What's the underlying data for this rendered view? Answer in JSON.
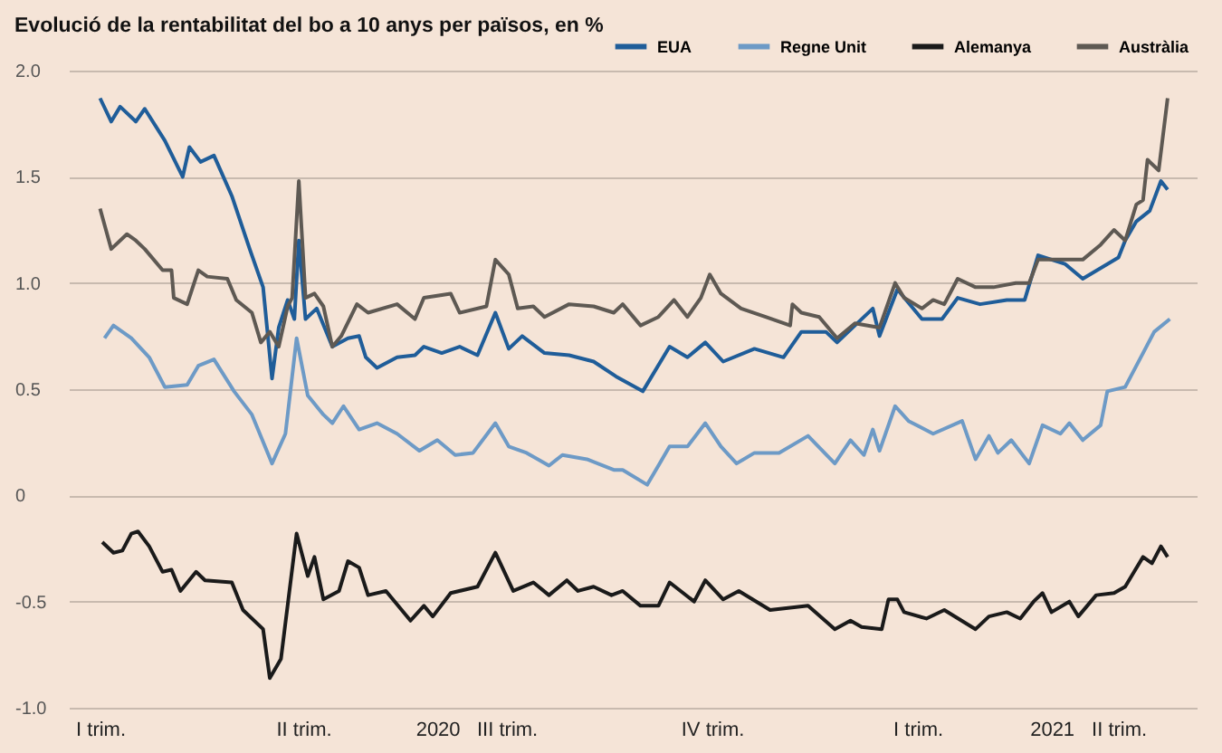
{
  "chart_data": {
    "type": "line",
    "title": "Evolució de la rentabilitat del bo a 10 anys per països, en %",
    "xlim": [
      "2019-12-18",
      "2021-05-06"
    ],
    "xticks": [
      {
        "value": "2020-01-01",
        "label": "I trim."
      },
      {
        "value": "2020-04-01",
        "label": "II trim."
      },
      {
        "value": "2020-07-01",
        "label": "III trim."
      },
      {
        "value": "2020-10-01",
        "label": "IV trim."
      },
      {
        "value": "2021-01-01",
        "label": "I trim."
      },
      {
        "value": "2021-04-01",
        "label": "II trim."
      },
      {
        "value": "2020-05-31",
        "label": "2020"
      },
      {
        "value": "2021-03-02",
        "label": "2021"
      }
    ],
    "ylim": [
      -1.0,
      2.0
    ],
    "yticks": [
      {
        "value": 2,
        "label": "2.0"
      },
      1.5,
      {
        "value": 1,
        "label": "1.0"
      },
      0.5,
      0,
      -0.5,
      {
        "value": -1,
        "label": "-1.0"
      }
    ],
    "grid": "y",
    "legend": "top right",
    "series": [
      {
        "name": "EUA",
        "color": "#1f5d99",
        "x": [
          "2020-01-01",
          "2020-01-06",
          "2020-01-10",
          "2020-01-17",
          "2020-01-21",
          "2020-01-30",
          "2020-02-07",
          "2020-02-10",
          "2020-02-15",
          "2020-02-21",
          "2020-02-29",
          "2020-03-08",
          "2020-03-14",
          "2020-03-18",
          "2020-03-21",
          "2020-03-25",
          "2020-03-28",
          "2020-03-30",
          "2020-04-02",
          "2020-04-07",
          "2020-04-14",
          "2020-04-21",
          "2020-04-26",
          "2020-04-29",
          "2020-05-04",
          "2020-05-13",
          "2020-05-21",
          "2020-05-25",
          "2020-06-02",
          "2020-06-10",
          "2020-06-18",
          "2020-06-26",
          "2020-07-02",
          "2020-07-08",
          "2020-07-18",
          "2020-07-29",
          "2020-08-09",
          "2020-08-19",
          "2020-08-31",
          "2020-09-12",
          "2020-09-20",
          "2020-09-28",
          "2020-10-06",
          "2020-10-20",
          "2020-11-02",
          "2020-11-10",
          "2020-11-21",
          "2020-11-26",
          "2020-12-04",
          "2020-12-12",
          "2020-12-15",
          "2020-12-23",
          "2021-01-03",
          "2021-01-12",
          "2021-01-19",
          "2021-01-29",
          "2021-02-10",
          "2021-02-18",
          "2021-02-24",
          "2021-03-08",
          "2021-03-16",
          "2021-04-01",
          "2021-04-04",
          "2021-04-09",
          "2021-04-15",
          "2021-04-20",
          "2021-04-23"
        ],
        "values": [
          1.87,
          1.76,
          1.83,
          1.76,
          1.82,
          1.67,
          1.5,
          1.64,
          1.57,
          1.6,
          1.41,
          1.16,
          0.98,
          0.55,
          0.79,
          0.92,
          0.83,
          1.2,
          0.83,
          0.88,
          0.7,
          0.74,
          0.75,
          0.65,
          0.6,
          0.65,
          0.66,
          0.7,
          0.67,
          0.7,
          0.66,
          0.86,
          0.69,
          0.75,
          0.67,
          0.66,
          0.63,
          0.56,
          0.49,
          0.7,
          0.65,
          0.72,
          0.63,
          0.69,
          0.65,
          0.77,
          0.77,
          0.72,
          0.8,
          0.88,
          0.75,
          0.97,
          0.83,
          0.83,
          0.93,
          0.9,
          0.92,
          0.92,
          1.13,
          1.09,
          1.02,
          1.12,
          1.2,
          1.29,
          1.34,
          1.48,
          1.44
        ]
      },
      {
        "name": "Regne Unit",
        "color": "#6d9ac6",
        "x": [
          "2020-01-03",
          "2020-01-07",
          "2020-01-15",
          "2020-01-23",
          "2020-01-30",
          "2020-02-09",
          "2020-02-14",
          "2020-02-21",
          "2020-03-01",
          "2020-03-09",
          "2020-03-18",
          "2020-03-24",
          "2020-03-29",
          "2020-04-03",
          "2020-04-10",
          "2020-04-14",
          "2020-04-19",
          "2020-04-26",
          "2020-05-04",
          "2020-05-13",
          "2020-05-23",
          "2020-05-31",
          "2020-06-08",
          "2020-06-16",
          "2020-06-26",
          "2020-07-02",
          "2020-07-10",
          "2020-07-20",
          "2020-07-26",
          "2020-08-06",
          "2020-08-18",
          "2020-08-22",
          "2020-09-02",
          "2020-09-07",
          "2020-09-12",
          "2020-09-20",
          "2020-09-28",
          "2020-10-05",
          "2020-10-12",
          "2020-10-20",
          "2020-10-31",
          "2020-11-13",
          "2020-11-25",
          "2020-12-02",
          "2020-12-08",
          "2020-12-12",
          "2020-12-15",
          "2020-12-22",
          "2020-12-28",
          "2021-01-08",
          "2021-01-21",
          "2021-01-27",
          "2021-02-02",
          "2021-02-06",
          "2021-02-12",
          "2021-02-20",
          "2021-02-26",
          "2021-03-06",
          "2021-03-10",
          "2021-03-16",
          "2021-03-24",
          "2021-03-27",
          "2021-04-04",
          "2021-04-09",
          "2021-04-12",
          "2021-04-17",
          "2021-04-24"
        ],
        "values": [
          0.74,
          0.8,
          0.74,
          0.65,
          0.51,
          0.52,
          0.61,
          0.64,
          0.49,
          0.38,
          0.15,
          0.29,
          0.74,
          0.47,
          0.38,
          0.34,
          0.42,
          0.31,
          0.34,
          0.29,
          0.21,
          0.26,
          0.19,
          0.2,
          0.34,
          0.23,
          0.2,
          0.14,
          0.19,
          0.17,
          0.12,
          0.12,
          0.05,
          0.14,
          0.23,
          0.23,
          0.34,
          0.23,
          0.15,
          0.2,
          0.2,
          0.28,
          0.15,
          0.26,
          0.19,
          0.31,
          0.21,
          0.42,
          0.35,
          0.29,
          0.35,
          0.17,
          0.28,
          0.2,
          0.26,
          0.15,
          0.33,
          0.29,
          0.34,
          0.26,
          0.33,
          0.49,
          0.51,
          0.61,
          0.67,
          0.77,
          0.83
        ]
      },
      {
        "name": "Alemanya",
        "color": "#1a1a1a",
        "x": [
          "2020-01-02",
          "2020-01-07",
          "2020-01-11",
          "2020-01-15",
          "2020-01-18",
          "2020-01-23",
          "2020-01-29",
          "2020-02-02",
          "2020-02-06",
          "2020-02-13",
          "2020-02-17",
          "2020-02-29",
          "2020-03-05",
          "2020-03-14",
          "2020-03-17",
          "2020-03-22",
          "2020-03-29",
          "2020-04-03",
          "2020-04-06",
          "2020-04-10",
          "2020-04-17",
          "2020-04-21",
          "2020-04-26",
          "2020-04-30",
          "2020-05-08",
          "2020-05-19",
          "2020-05-25",
          "2020-05-29",
          "2020-06-06",
          "2020-06-18",
          "2020-06-26",
          "2020-07-04",
          "2020-07-13",
          "2020-07-20",
          "2020-07-28",
          "2020-08-02",
          "2020-08-09",
          "2020-08-17",
          "2020-08-22",
          "2020-08-30",
          "2020-09-07",
          "2020-09-12",
          "2020-09-23",
          "2020-09-28",
          "2020-10-06",
          "2020-10-13",
          "2020-10-27",
          "2020-11-13",
          "2020-11-25",
          "2020-12-02",
          "2020-12-07",
          "2020-12-16",
          "2020-12-19",
          "2020-12-23",
          "2020-12-26",
          "2021-01-05",
          "2021-01-13",
          "2021-01-27",
          "2021-02-02",
          "2021-02-10",
          "2021-02-16",
          "2021-02-22",
          "2021-02-26",
          "2021-03-02",
          "2021-03-10",
          "2021-03-14",
          "2021-03-22",
          "2021-03-30",
          "2021-04-04",
          "2021-04-08",
          "2021-04-12",
          "2021-04-16",
          "2021-04-20",
          "2021-04-23"
        ],
        "values": [
          -0.22,
          -0.27,
          -0.26,
          -0.18,
          -0.17,
          -0.24,
          -0.36,
          -0.35,
          -0.45,
          -0.36,
          -0.4,
          -0.41,
          -0.54,
          -0.63,
          -0.86,
          -0.77,
          -0.18,
          -0.38,
          -0.29,
          -0.49,
          -0.45,
          -0.31,
          -0.34,
          -0.47,
          -0.45,
          -0.59,
          -0.52,
          -0.57,
          -0.46,
          -0.43,
          -0.27,
          -0.45,
          -0.41,
          -0.47,
          -0.4,
          -0.45,
          -0.43,
          -0.47,
          -0.45,
          -0.52,
          -0.52,
          -0.41,
          -0.5,
          -0.4,
          -0.49,
          -0.45,
          -0.54,
          -0.52,
          -0.63,
          -0.59,
          -0.62,
          -0.63,
          -0.49,
          -0.49,
          -0.55,
          -0.58,
          -0.54,
          -0.63,
          -0.57,
          -0.55,
          -0.58,
          -0.5,
          -0.46,
          -0.55,
          -0.5,
          -0.57,
          -0.47,
          -0.46,
          -0.43,
          -0.36,
          -0.29,
          -0.32,
          -0.24,
          -0.29
        ]
      },
      {
        "name": "Austràlia",
        "color": "#5e5953",
        "x": [
          "2020-01-01",
          "2020-01-06",
          "2020-01-13",
          "2020-01-17",
          "2020-01-21",
          "2020-01-29",
          "2020-02-02",
          "2020-02-03",
          "2020-02-09",
          "2020-02-14",
          "2020-02-18",
          "2020-02-27",
          "2020-03-02",
          "2020-03-09",
          "2020-03-13",
          "2020-03-17",
          "2020-03-21",
          "2020-03-25",
          "2020-03-27",
          "2020-03-30",
          "2020-04-02",
          "2020-04-06",
          "2020-04-10",
          "2020-04-14",
          "2020-04-18",
          "2020-04-25",
          "2020-04-30",
          "2020-05-13",
          "2020-05-21",
          "2020-05-25",
          "2020-06-06",
          "2020-06-10",
          "2020-06-22",
          "2020-06-26",
          "2020-07-02",
          "2020-07-06",
          "2020-07-13",
          "2020-07-18",
          "2020-07-29",
          "2020-08-09",
          "2020-08-18",
          "2020-08-22",
          "2020-08-30",
          "2020-09-07",
          "2020-09-14",
          "2020-09-20",
          "2020-09-26",
          "2020-09-30",
          "2020-10-05",
          "2020-10-14",
          "2020-10-25",
          "2020-11-05",
          "2020-11-06",
          "2020-11-10",
          "2020-11-18",
          "2020-11-26",
          "2020-12-04",
          "2020-12-15",
          "2020-12-22",
          "2020-12-26",
          "2021-01-03",
          "2021-01-08",
          "2021-01-13",
          "2021-01-19",
          "2021-01-27",
          "2021-02-04",
          "2021-02-14",
          "2021-02-20",
          "2021-02-24",
          "2021-03-08",
          "2021-03-16",
          "2021-03-24",
          "2021-03-30",
          "2021-04-04",
          "2021-04-09",
          "2021-04-12",
          "2021-04-14",
          "2021-04-19",
          "2021-04-23"
        ],
        "values": [
          1.35,
          1.16,
          1.23,
          1.2,
          1.16,
          1.06,
          1.06,
          0.93,
          0.9,
          1.06,
          1.03,
          1.02,
          0.92,
          0.86,
          0.72,
          0.77,
          0.7,
          0.89,
          0.93,
          1.48,
          0.93,
          0.95,
          0.89,
          0.7,
          0.75,
          0.9,
          0.86,
          0.9,
          0.83,
          0.93,
          0.95,
          0.86,
          0.89,
          1.11,
          1.04,
          0.88,
          0.89,
          0.84,
          0.9,
          0.89,
          0.86,
          0.9,
          0.8,
          0.84,
          0.92,
          0.84,
          0.93,
          1.04,
          0.95,
          0.88,
          0.84,
          0.8,
          0.9,
          0.86,
          0.84,
          0.74,
          0.81,
          0.79,
          1.0,
          0.93,
          0.88,
          0.92,
          0.9,
          1.02,
          0.98,
          0.98,
          1.0,
          1.0,
          1.11,
          1.11,
          1.11,
          1.18,
          1.25,
          1.2,
          1.37,
          1.39,
          1.58,
          1.53,
          1.87
        ]
      }
    ]
  }
}
